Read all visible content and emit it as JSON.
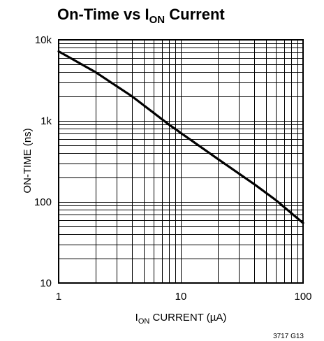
{
  "chart_data": {
    "type": "line",
    "title": {
      "main": "On-Time vs I",
      "sub": "ON",
      "tail": " Current"
    },
    "xlabel": {
      "main": "I",
      "sub": "ON",
      "tail": " CURRENT (µA)"
    },
    "ylabel": "ON-TIME (ns)",
    "x_scale": "log",
    "y_scale": "log",
    "xlim": [
      1,
      100
    ],
    "ylim": [
      10,
      10000
    ],
    "grid": true,
    "x_ticks": [
      {
        "value": 1,
        "label": "1"
      },
      {
        "value": 10,
        "label": "10"
      },
      {
        "value": 100,
        "label": "100"
      }
    ],
    "y_ticks": [
      {
        "value": 10,
        "label": "10"
      },
      {
        "value": 100,
        "label": "100"
      },
      {
        "value": 1000,
        "label": "1k"
      },
      {
        "value": 10000,
        "label": "10k"
      }
    ],
    "series": [
      {
        "color": "#000000",
        "x": [
          1,
          2,
          4,
          8,
          10,
          20,
          40,
          60,
          100
        ],
        "y": [
          7200,
          4000,
          2000,
          900,
          710,
          340,
          165,
          105,
          55
        ]
      }
    ],
    "figure_id": "3717 G13"
  }
}
